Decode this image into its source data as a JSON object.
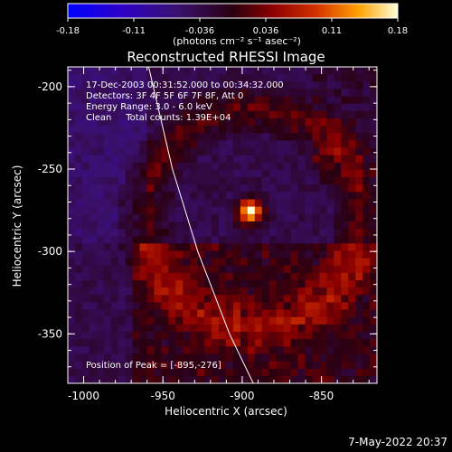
{
  "chart_data": {
    "type": "heatmap",
    "title": "Reconstructed RHESSI Image",
    "colorbar": {
      "min": -0.18,
      "max": 0.18,
      "tick_labels": [
        "-0.18",
        "-0.11",
        "-0.036",
        "0.036",
        "0.11",
        "0.18"
      ],
      "units_label": "(photons cm⁻² s⁻¹ asec⁻²)"
    },
    "info_lines": [
      "17-Dec-2003 00:31:52.000 to 00:34:32.000",
      "Detectors: 3F 4F 5F 6F 7F 8F, Att 0",
      "Energy Range: 3.0 - 6.0 keV",
      "Clean     Total counts: 1.39E+04"
    ],
    "peak_label": "Position of Peak = [-895,-276]",
    "peak": {
      "x": -895,
      "y": -276
    },
    "xlabel": "Heliocentric X (arcsec)",
    "ylabel": "Heliocentric Y (arcsec)",
    "xlim": [
      -1010,
      -815
    ],
    "ylim": [
      -380,
      -188
    ],
    "xticks": [
      -1000,
      -950,
      -900,
      -850
    ],
    "xtick_labels": [
      "-1000",
      "-950",
      "-900",
      "-850"
    ],
    "yticks": [
      -200,
      -250,
      -300,
      -350
    ],
    "ytick_labels": [
      "-200",
      "-250",
      "-300",
      "-350"
    ],
    "limb_curve": [
      {
        "x": -959,
        "y": -188
      },
      {
        "x": -944,
        "y": -250
      },
      {
        "x": -928,
        "y": -300
      },
      {
        "x": -908,
        "y": -350
      },
      {
        "x": -893,
        "y": -380
      }
    ]
  },
  "footer": {
    "timestamp": "7-May-2022 20:37"
  }
}
